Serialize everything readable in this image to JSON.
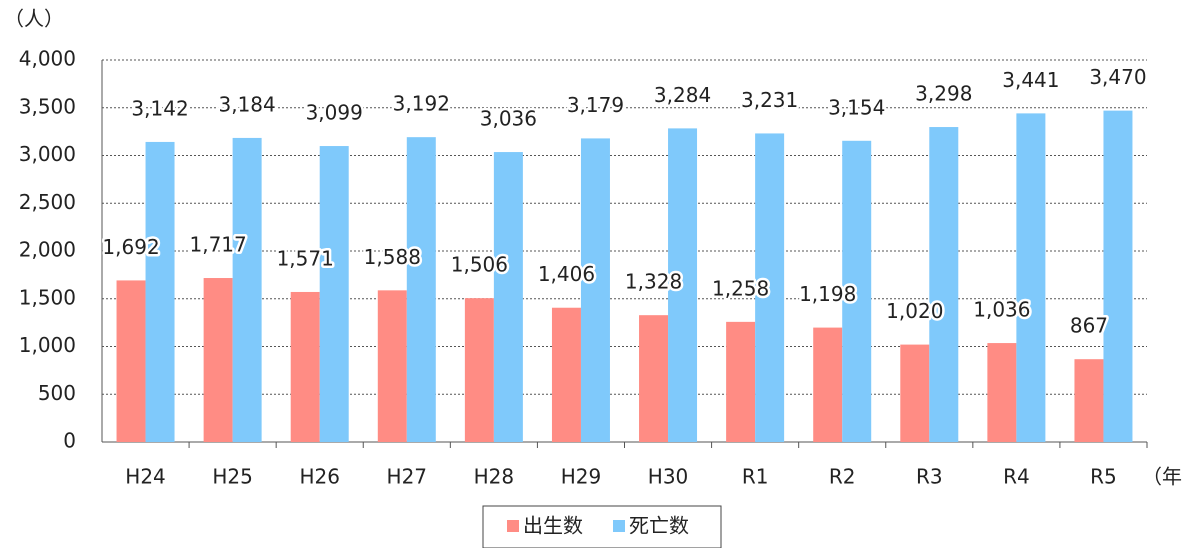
{
  "chart_data": {
    "type": "bar",
    "y_axis_label": "（人）",
    "x_axis_label": "（年）",
    "categories": [
      "H24",
      "H25",
      "H26",
      "H27",
      "H28",
      "H29",
      "H30",
      "R1",
      "R2",
      "R3",
      "R4",
      "R5"
    ],
    "series": [
      {
        "name": "出生数",
        "color": "#ff8c84",
        "values": [
          1692,
          1717,
          1571,
          1588,
          1506,
          1406,
          1328,
          1258,
          1198,
          1020,
          1036,
          867
        ],
        "value_labels": [
          "1,692",
          "1,717",
          "1,571",
          "1,588",
          "1,506",
          "1,406",
          "1,328",
          "1,258",
          "1,198",
          "1,020",
          "1,036",
          "867"
        ]
      },
      {
        "name": "死亡数",
        "color": "#7fc9fb",
        "values": [
          3142,
          3184,
          3099,
          3192,
          3036,
          3179,
          3284,
          3231,
          3154,
          3298,
          3441,
          3470
        ],
        "value_labels": [
          "3,142",
          "3,184",
          "3,099",
          "3,192",
          "3,036",
          "3,179",
          "3,284",
          "3,231",
          "3,154",
          "3,298",
          "3,441",
          "3,470"
        ]
      }
    ],
    "ylim": [
      0,
      4000
    ],
    "yticks": [
      0,
      500,
      {
        "value": 1000,
        "label": "1,000"
      },
      {
        "value": 1500,
        "label": "1,500"
      },
      {
        "value": 2000,
        "label": "2,000"
      },
      {
        "value": 2500,
        "label": "2,500"
      },
      {
        "value": 3000,
        "label": "3,000"
      },
      {
        "value": 3500,
        "label": "3,500"
      },
      {
        "value": 4000,
        "label": "4,000"
      }
    ],
    "grid": true
  }
}
